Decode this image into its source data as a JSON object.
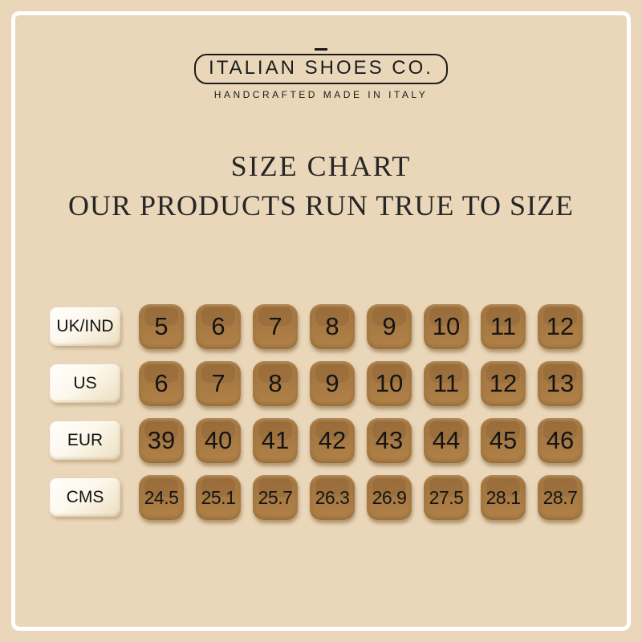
{
  "brand": {
    "name": "ITALIAN SHOES CO.",
    "tagline": "HANDCRAFTED MADE IN ITALY"
  },
  "chart_data": {
    "type": "table",
    "title": "SIZE CHART",
    "subtitle": "OUR PRODUCTS RUN TRUE TO SIZE",
    "rows": [
      {
        "label": "UK/IND",
        "values": [
          "5",
          "6",
          "7",
          "8",
          "9",
          "10",
          "11",
          "12"
        ]
      },
      {
        "label": "US",
        "values": [
          "6",
          "7",
          "8",
          "9",
          "10",
          "11",
          "12",
          "13"
        ]
      },
      {
        "label": "EUR",
        "values": [
          "39",
          "40",
          "41",
          "42",
          "43",
          "44",
          "45",
          "46"
        ]
      },
      {
        "label": "CMS",
        "values": [
          "24.5",
          "25.1",
          "25.7",
          "26.3",
          "26.9",
          "27.5",
          "28.1",
          "28.7"
        ]
      }
    ]
  },
  "colors": {
    "background": "#EAD7BA",
    "tile_brown": "#A97B44",
    "label_cream_light": "#FFFFFF",
    "label_cream_dark": "#ECDFC1",
    "frame_white": "#FFFFFF",
    "text_dark": "#1B1B1B"
  }
}
